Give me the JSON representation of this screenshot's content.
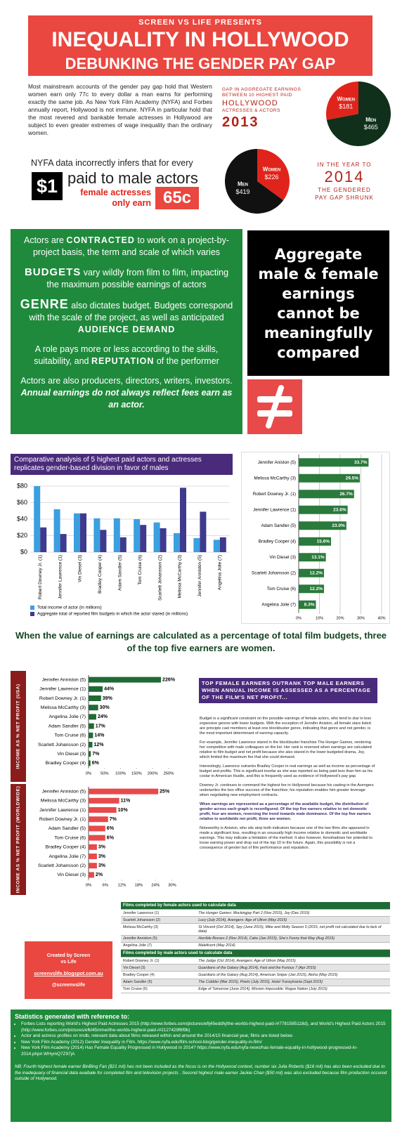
{
  "header": {
    "kicker": "SCREEN VS LIFE PRESENTS",
    "title": "INEQUALITY IN HOLLYWOOD",
    "subtitle": "DEBUNKING THE GENDER PAY GAP"
  },
  "intro": {
    "text": "Most mainstream accounts of the gender pay gap hold that Western women earn only 77c to every dollar a man earns for performing exactly the same job. As New York Film Academy (NYFA) and Forbes annually report, Hollywood is not immune. NYFA in particular hold that the most revered and bankable female actresses in Hollywood are subject to even greater extremes of wage inequality than the ordinary women.",
    "claim": "NYFA data incorrectly infers that for every",
    "dollar": "$1",
    "male": "paid to male actors",
    "female": "female actresses only earn",
    "cents": "65c"
  },
  "gap2013": {
    "caption": "GAP IN AGGREGATE EARNINGS BETWEEN 10 HIGHEST PAID",
    "hollywood": "HOLLYWOOD",
    "who": "ACTRESSES & ACTORS",
    "year": "2013"
  },
  "gap2014": {
    "caption": "IN THE YEAR TO",
    "year": "2014",
    "note": "THE GENDERED PAY GAP SHRUNK"
  },
  "factors": [
    [
      "Actors are ",
      "CONTRACTED",
      " to work on a project-by-project basis, the term and scale of which varies"
    ],
    [
      "BUDGETS",
      " vary wildly from film to film, impacting the maximum possible earnings of actors"
    ],
    [
      "GENRE",
      " also dictates budget. Budgets correspond with the scale of the project, as well as anticipated ",
      "AUDIENCE DEMAND"
    ],
    [
      "A role pays more or less according to the skills, suitability, and ",
      "REPUTATION",
      " of the performer"
    ],
    [
      "Actors are also producers, directors, writers, investors. ",
      "Annual earnings do not always reflect fees earn as an actor."
    ]
  ],
  "verdict": "Aggregate male & female earnings cannot be meaningfully compared",
  "chart_data": [
    {
      "type": "pie",
      "categories": [
        "Women",
        "Men"
      ],
      "values": [
        181,
        465
      ],
      "value_labels": [
        "$181",
        "$465"
      ],
      "colors": [
        "#e0241b",
        "#10301b"
      ]
    },
    {
      "type": "pie",
      "categories": [
        "Women",
        "Men"
      ],
      "values": [
        226,
        419
      ],
      "value_labels": [
        "$226",
        "$419"
      ],
      "colors": [
        "#e0241b",
        "#111111"
      ]
    },
    {
      "type": "bar",
      "title": "Comparative analysis of 5 highest paid actors and actresses replicates gender-based division in favor of males",
      "categories": [
        "Robert Downey Jr. (1)",
        "Jennifer Lawrence (1)",
        "Vin Diesel (3)",
        "Bradley Cooper (4)",
        "Adam Sandler (5)",
        "Tom Cruise (6)",
        "Scarlett Johansson (2)",
        "Melissa McCarthy (3)",
        "Jennifer Anniston (5)",
        "Angelina Jolie (7)"
      ],
      "series": [
        {
          "name": "Total income of actor (in millions)",
          "color": "#3b9fe0",
          "values": [
            80,
            52,
            47,
            41,
            41,
            40,
            36,
            23,
            17,
            15
          ]
        },
        {
          "name": "Aggregate total of reported film budgets in which the actor stared (in millions)",
          "color": "#3e3a8e",
          "values": [
            30,
            22,
            47,
            27,
            18,
            33,
            29,
            78,
            49,
            18
          ]
        }
      ],
      "ylim": [
        0,
        80
      ],
      "yticks": [
        {
          "value": 0,
          "label": "$0"
        },
        {
          "value": 20,
          "label": "$20"
        },
        {
          "value": 40,
          "label": "$40"
        },
        {
          "value": 60,
          "label": "$60"
        },
        {
          "value": 80,
          "label": "$80"
        }
      ],
      "grid": true
    },
    {
      "type": "hbar",
      "categories": [
        "Jennifer Aniston (5)",
        "Melissa McCarthy (3)",
        "Robert Downey Jr. (1)",
        "Jennifer Lawrence (1)",
        "Adam Sandler (5)",
        "Bradley Cooper (4)",
        "Vin Diesel (3)",
        "Scarlett Johansson (2)",
        "Tom Cruise (6)",
        "Angelina Jolie (7)"
      ],
      "values": [
        33.7,
        29.5,
        26.7,
        23.6,
        23.0,
        15.6,
        13.1,
        12.2,
        12.2,
        8.3
      ],
      "value_labels": [
        "33.7%",
        "29.5%",
        "26.7%",
        "23.6%",
        "23.0%",
        "15.6%",
        "13.1%",
        "12.2%",
        "12.2%",
        "8.3%"
      ],
      "color": "#2a7a3b",
      "xlim": [
        0,
        40
      ],
      "xticks": [
        {
          "value": 0,
          "label": "0%"
        },
        {
          "value": 10,
          "label": "10%"
        },
        {
          "value": 20,
          "label": "20%"
        },
        {
          "value": 30,
          "label": "30%"
        },
        {
          "value": 40,
          "label": "40%"
        }
      ],
      "grid": true
    },
    {
      "type": "hbar",
      "y_label": "INCOME AS % NET PROFIT (USA)",
      "categories": [
        "Jennifer Anniston (5)",
        "Jennifer Lawrence (1)",
        "Robert Downey Jr. (1)",
        "Melissa McCarthy (3)",
        "Angelina Jolie (7)",
        "Adam Sandler (5)",
        "Tom Cruise (6)",
        "Scarlett Johansson (2)",
        "Vin Diesel (3)",
        "Bradley Cooper (4)"
      ],
      "values": [
        226,
        44,
        39,
        30,
        24,
        17,
        14,
        12,
        7,
        6
      ],
      "value_labels": [
        "226%",
        "44%",
        "39%",
        "30%",
        "24%",
        "17%",
        "14%",
        "12%",
        "7%",
        "6%"
      ],
      "color": "#1f6b35",
      "xlim": [
        0,
        250
      ],
      "xticks": [
        {
          "value": 0,
          "label": "0%"
        },
        {
          "value": 50,
          "label": "50%"
        },
        {
          "value": 100,
          "label": "100%"
        },
        {
          "value": 150,
          "label": "150%"
        },
        {
          "value": 200,
          "label": "200%"
        },
        {
          "value": 250,
          "label": "250%"
        }
      ],
      "grid": false
    },
    {
      "type": "hbar",
      "y_label": "INCOME AS % NET PROFIT (WORLDWIDE)",
      "categories": [
        "Jennifer Anniston (5)",
        "Melissa McCarthy (3)",
        "Jennifer Lawrence (1)",
        "Robert Downey Jr. (1)",
        "Adam Sandler (5)",
        "Tom Cruise (6)",
        "Bradley Cooper (4)",
        "Angelina Jolie (7)",
        "Scarlett Johansson (2)",
        "Vin Diesel (3)"
      ],
      "values": [
        25,
        11,
        10,
        7,
        6,
        6,
        3,
        3,
        3,
        2
      ],
      "value_labels": [
        "25%",
        "11%",
        "10%",
        "7%",
        "6%",
        "6%",
        "3%",
        "3%",
        "3%",
        "2%"
      ],
      "color": "#e84a4a",
      "xlim": [
        0,
        30
      ],
      "xticks": [
        {
          "value": 0,
          "label": "0%"
        },
        {
          "value": 6,
          "label": "6%"
        },
        {
          "value": 12,
          "label": "12%"
        },
        {
          "value": 18,
          "label": "18%"
        },
        {
          "value": 24,
          "label": "24%"
        },
        {
          "value": 30,
          "label": "30%"
        }
      ],
      "grid": false
    }
  ],
  "banner": "When the value of earnings are calculated as a percentage of total film budgets, three of the top five earners are women.",
  "analysis": {
    "title": "TOP FEMALE EARNERS OUTRANK TOP MALE EARNERS WHEN ANNUAL INCOME IS ASSESSED AS A PERCENTAGE OF THE FILM'S NET PROFIT...",
    "paragraphs": [
      "Budget is a significant constraint on the possible earnings of female actors, who tend to star in less expensive genres with lower budgets. With the exception of Jennifer Aniston, all female stars listed are principle cast members at least one blockbuster genre, indicating that genre and not gender, is the most important determinant of earning capacity.",
      "For example, Jennifer Lawrence stared in the blockbuster franchise The Hunger Games, rendering her competitive with male colleagues on the list. Her rank is reversed when earnings are calculated relative to film budget and net profit because she also stared in the lower budgeted drama, Joy, which limited the maximum fee that she could demand.",
      "Interestingly, Lawrence outranks Bradley Cooper in real earnings as well as income as percentage of budget and profits. This is significant insofar as she was reported as being paid less than him as his costar in American Hustle, and this is frequently used as evidence of Hollywood's pay gap.",
      "Downey Jr. continues to command the highest fee in Hollywood because his casting in the Avengers underwrites the box office success of the franchise; his reputation enables him greater leverage when negotiating new employment contracts.",
      "When earnings are represented as a percentage of the available budget, the distribution of gender across each graph is reconfigured. Of the top five earners relative to net domestic profit, four are women, reversing the trend towards male dominance. Of the top five earners relative to worldwide net profit, three are women.",
      "Noteworthy is Aniston, who sits atop both indicators because one of the two films she appeared in made a significant loss, resulting in an unusually high income relative to domestic and worldwide earnings. This may indicate a limitation of the method. It also however, foreshadows her potential to loose earning power and drop out of the top 10 in the future. Again, this possibility is not a consequence of gender but of film performance and reputation."
    ]
  },
  "credit": {
    "title": "Created by Screen vs Life",
    "site": "screenvslife.blogspot.com.au",
    "handle": "@screenvslife"
  },
  "tables": [
    {
      "title": "Films completed by female actors used to calculate data",
      "rows": [
        [
          "Jennifer Lawrence (1)",
          "The Hunger Games: Mockingjay Part 2 (Nov 2015), Joy (Dec 2015)"
        ],
        [
          "Scarlett Johansson (2)",
          "Lucy (July 2014), Avengers: Age of Ultron (May 2015)"
        ],
        [
          "Melissa McCarthy (3)",
          "St Vincent (Oct 2014), Spy (June 2015), Mike and Molly Season 5 (2015, net profit not calculated due to lack of data)"
        ],
        [
          "Jennifer Anniston (5)",
          "Horrible Bosses 2 (Nov 2014), Cake (Jan 2015), She's Funny that Way (Aug 2015)"
        ],
        [
          "Angelina Jolie (7)",
          "Maleficent (May 2014)"
        ]
      ]
    },
    {
      "title": "Films completed by male actors used to calculate data",
      "rows": [
        [
          "Robert Downey Jr. (1)",
          "The Judge (Oct 2014), Avengers: Age of Ultron (May 2015)"
        ],
        [
          "Vin Diesel (3)",
          "Guardians of the Galaxy (Aug 2014), Fast and the Furious 7 (Apr 2015)"
        ],
        [
          "Bradley Cooper (4)",
          "Guardians of the Galaxy (Aug 2014), American Sniper (Jan 2015), Aloha (May 2015)"
        ],
        [
          "Adam Sandler (5)",
          "The Cobbler (Mar 2015), Pixels (July 2015), Hotel Transylvania (Sept 2015)"
        ],
        [
          "Tom Cruise (6)",
          "Edge of Tomorrow (June 2014), Mission Impossible: Rogue Nation (July 2015)"
        ]
      ]
    }
  ],
  "references": {
    "title": "Statistics generated with reference to:",
    "items": [
      "Forbes Lists reporting World's Highest Paid Actresses 2015 (http://www.forbes.com/pictures/eflj45eddhj/the-worlds-highest-paid-/#7781585118d), and World's Highest Paid Actors 2015 (http://www.forbes.com/pictures/efkl45mmei/the-worlds-highest-paid-/#2127429f6f9b)",
      "Actor and actress profiles on imdb, relevant data about films released within and around the 2014/15 financial year, films are listed below.",
      "New York Film Academy (2012) Gender Inequality in Film. https://www.nyfa.edu/film-school-blog/gender-inequality-in-film/",
      "New York Film Academy (2014) Has Female Equality Progressed in Hollywood in 2014? https://www.nyfa.edu/nyfa-news/has-female-equality-in-hollywood-progressed-in-2014.php#.WHymQ7Z97jA"
    ],
    "note": "NB: Fourth highest female earner BinBing Fan ($21 mil) has not been included as the focus is on the Hollywood context, number six Julia Roberts ($16 mil) has also been excluded due to the inadequacy of financial data avaibale for completed film and television projects . Second highest male earner Jackie Chan ($50 mil) was also excluded because film production occured outside of Hollywood."
  }
}
